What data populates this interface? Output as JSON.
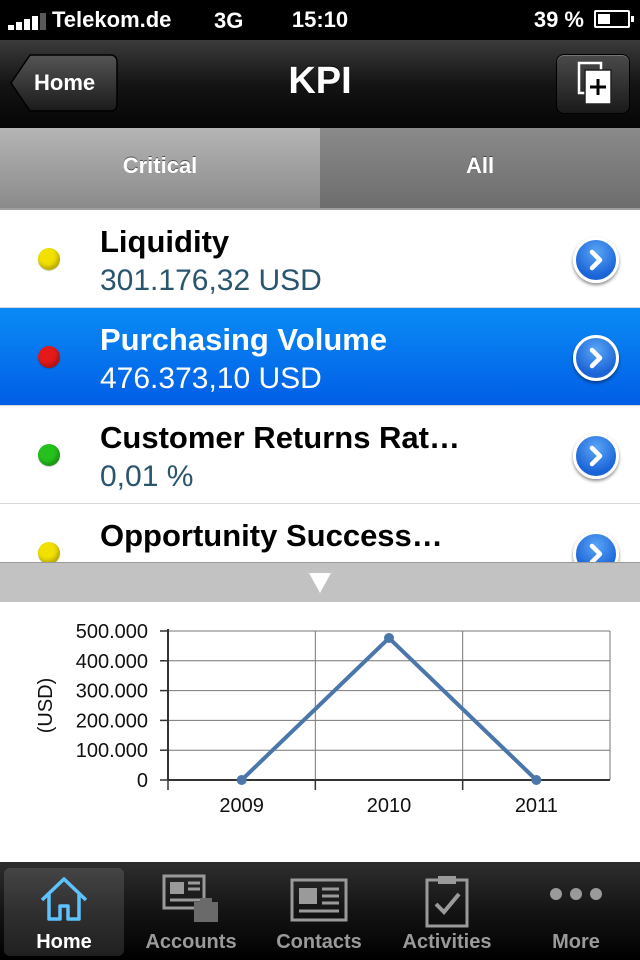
{
  "status_bar": {
    "carrier": "Telekom.de",
    "network": "3G",
    "time": "15:10",
    "battery": "39 %",
    "battery_level": 0.39
  },
  "nav": {
    "title": "KPI",
    "back_label": "Home",
    "add_icon": "add-page-icon"
  },
  "segments": [
    {
      "label": "Critical",
      "selected": false
    },
    {
      "label": "All",
      "selected": true
    }
  ],
  "kpis": [
    {
      "name": "Liquidity",
      "value": "301.176,32 USD",
      "status": "yellow",
      "selected": false
    },
    {
      "name": "Purchasing Volume",
      "value": "476.373,10 USD",
      "status": "red",
      "selected": true
    },
    {
      "name": "Customer Returns Rat…",
      "value": "0,01 %",
      "status": "green",
      "selected": false
    },
    {
      "name": "Opportunity Success…",
      "value": "",
      "status": "yellow",
      "selected": false
    }
  ],
  "colors": {
    "yellow": "#f2e100",
    "red": "#e41a1a",
    "green": "#25c21d",
    "accent": "#0a7ff0",
    "line": "#4a76aa"
  },
  "chart_data": {
    "type": "line",
    "x": [
      "2009",
      "2010",
      "2011"
    ],
    "series": [
      {
        "values": [
          0,
          476373.1,
          0
        ]
      }
    ],
    "ylabel": "(USD)",
    "ylim": [
      0,
      500000
    ],
    "yticks": [
      "0",
      "100.000",
      "200.000",
      "300.000",
      "400.000",
      "500.000"
    ],
    "grid": true
  },
  "tabs": [
    {
      "label": "Home",
      "icon": "home-icon",
      "active": true
    },
    {
      "label": "Accounts",
      "icon": "accounts-icon",
      "active": false
    },
    {
      "label": "Contacts",
      "icon": "contacts-icon",
      "active": false
    },
    {
      "label": "Activities",
      "icon": "activities-icon",
      "active": false
    },
    {
      "label": "More",
      "icon": "more-icon",
      "active": false
    }
  ]
}
